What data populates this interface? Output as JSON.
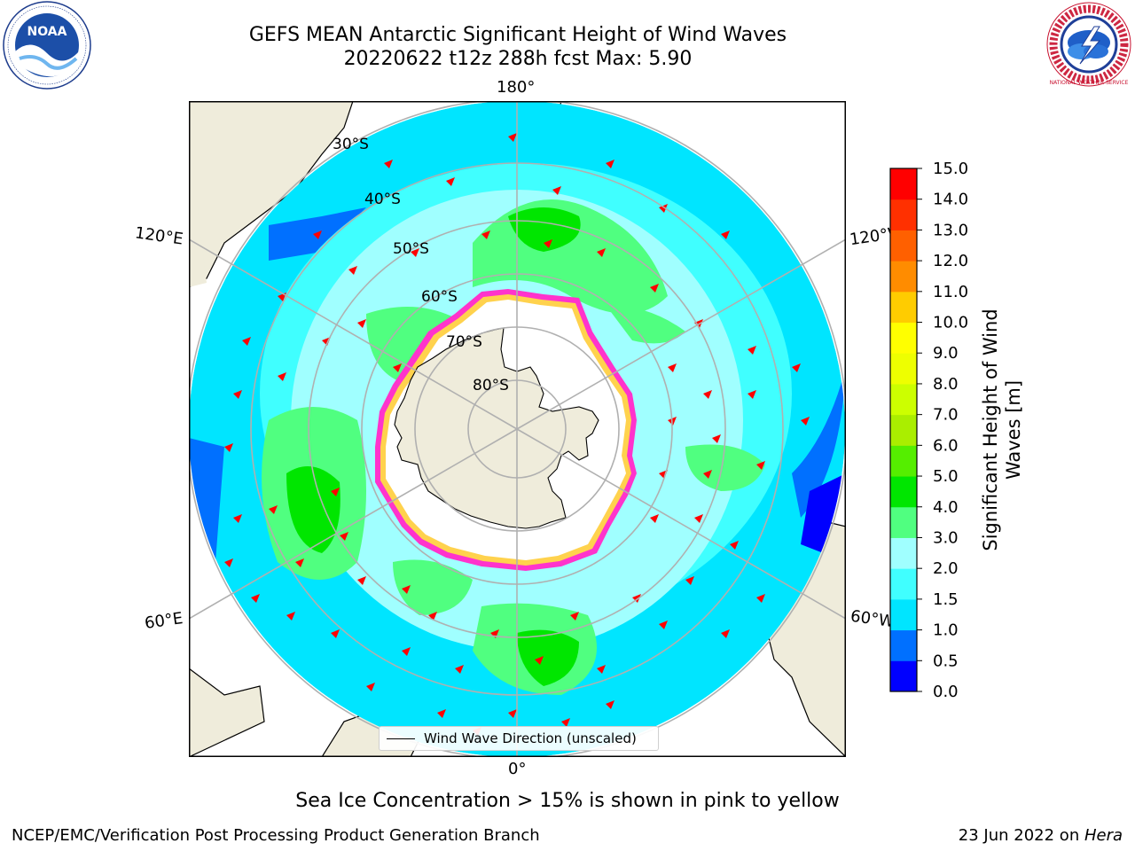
{
  "title": {
    "line1": "GEFS MEAN Antarctic Significant Height of Wind Waves",
    "line2": "20220622 t12z 288h fcst   Max: 5.90"
  },
  "map": {
    "projection": "south-polar-stereographic",
    "longitude_labels": {
      "top": "180°",
      "upper_left": "120°E",
      "upper_right": "120°W",
      "lower_left": "60°E",
      "lower_right": "60°W",
      "bottom": "0°"
    },
    "latitude_labels": [
      "30°S",
      "40°S",
      "50°S",
      "60°S",
      "70°S",
      "80°S"
    ],
    "legend": "Wind Wave Direction (unscaled)",
    "colors": {
      "land": "#efecdb",
      "sea_ice_core": "#ffffff",
      "sea_ice_edge_pink": "#ff33cc",
      "sea_ice_edge_yellow": "#ffd24d",
      "arrows": "#ff0000",
      "grid": "#b0b0b0"
    }
  },
  "colorbar": {
    "title_line1": "Significant Height of Wind",
    "title_line2": "Waves [m]",
    "ticks": [
      "0.0",
      "0.5",
      "1.0",
      "1.5",
      "2.0",
      "3.0",
      "4.0",
      "5.0",
      "6.0",
      "7.0",
      "8.0",
      "9.0",
      "10.0",
      "11.0",
      "12.0",
      "13.0",
      "14.0",
      "15.0"
    ],
    "colors": [
      "#0000ff",
      "#0070ff",
      "#00e5ff",
      "#40ffff",
      "#a0ffff",
      "#50ff80",
      "#00e600",
      "#55ee00",
      "#aaee00",
      "#ccff00",
      "#eeff00",
      "#ffff00",
      "#ffcc00",
      "#ff8c00",
      "#ff6000",
      "#ff3000",
      "#ff0000"
    ]
  },
  "note": "Sea Ice Concentration > 15% is shown in pink to yellow",
  "footer": {
    "left": "NCEP/EMC/Verification Post Processing Product Generation Branch",
    "right_date": "23 Jun 2022 on ",
    "right_host": "Hera"
  },
  "logos": {
    "left": "noaa-logo",
    "right": "nws-logo",
    "left_text": "NOAA",
    "right_text": "NATIONAL WEATHER SERVICE"
  }
}
